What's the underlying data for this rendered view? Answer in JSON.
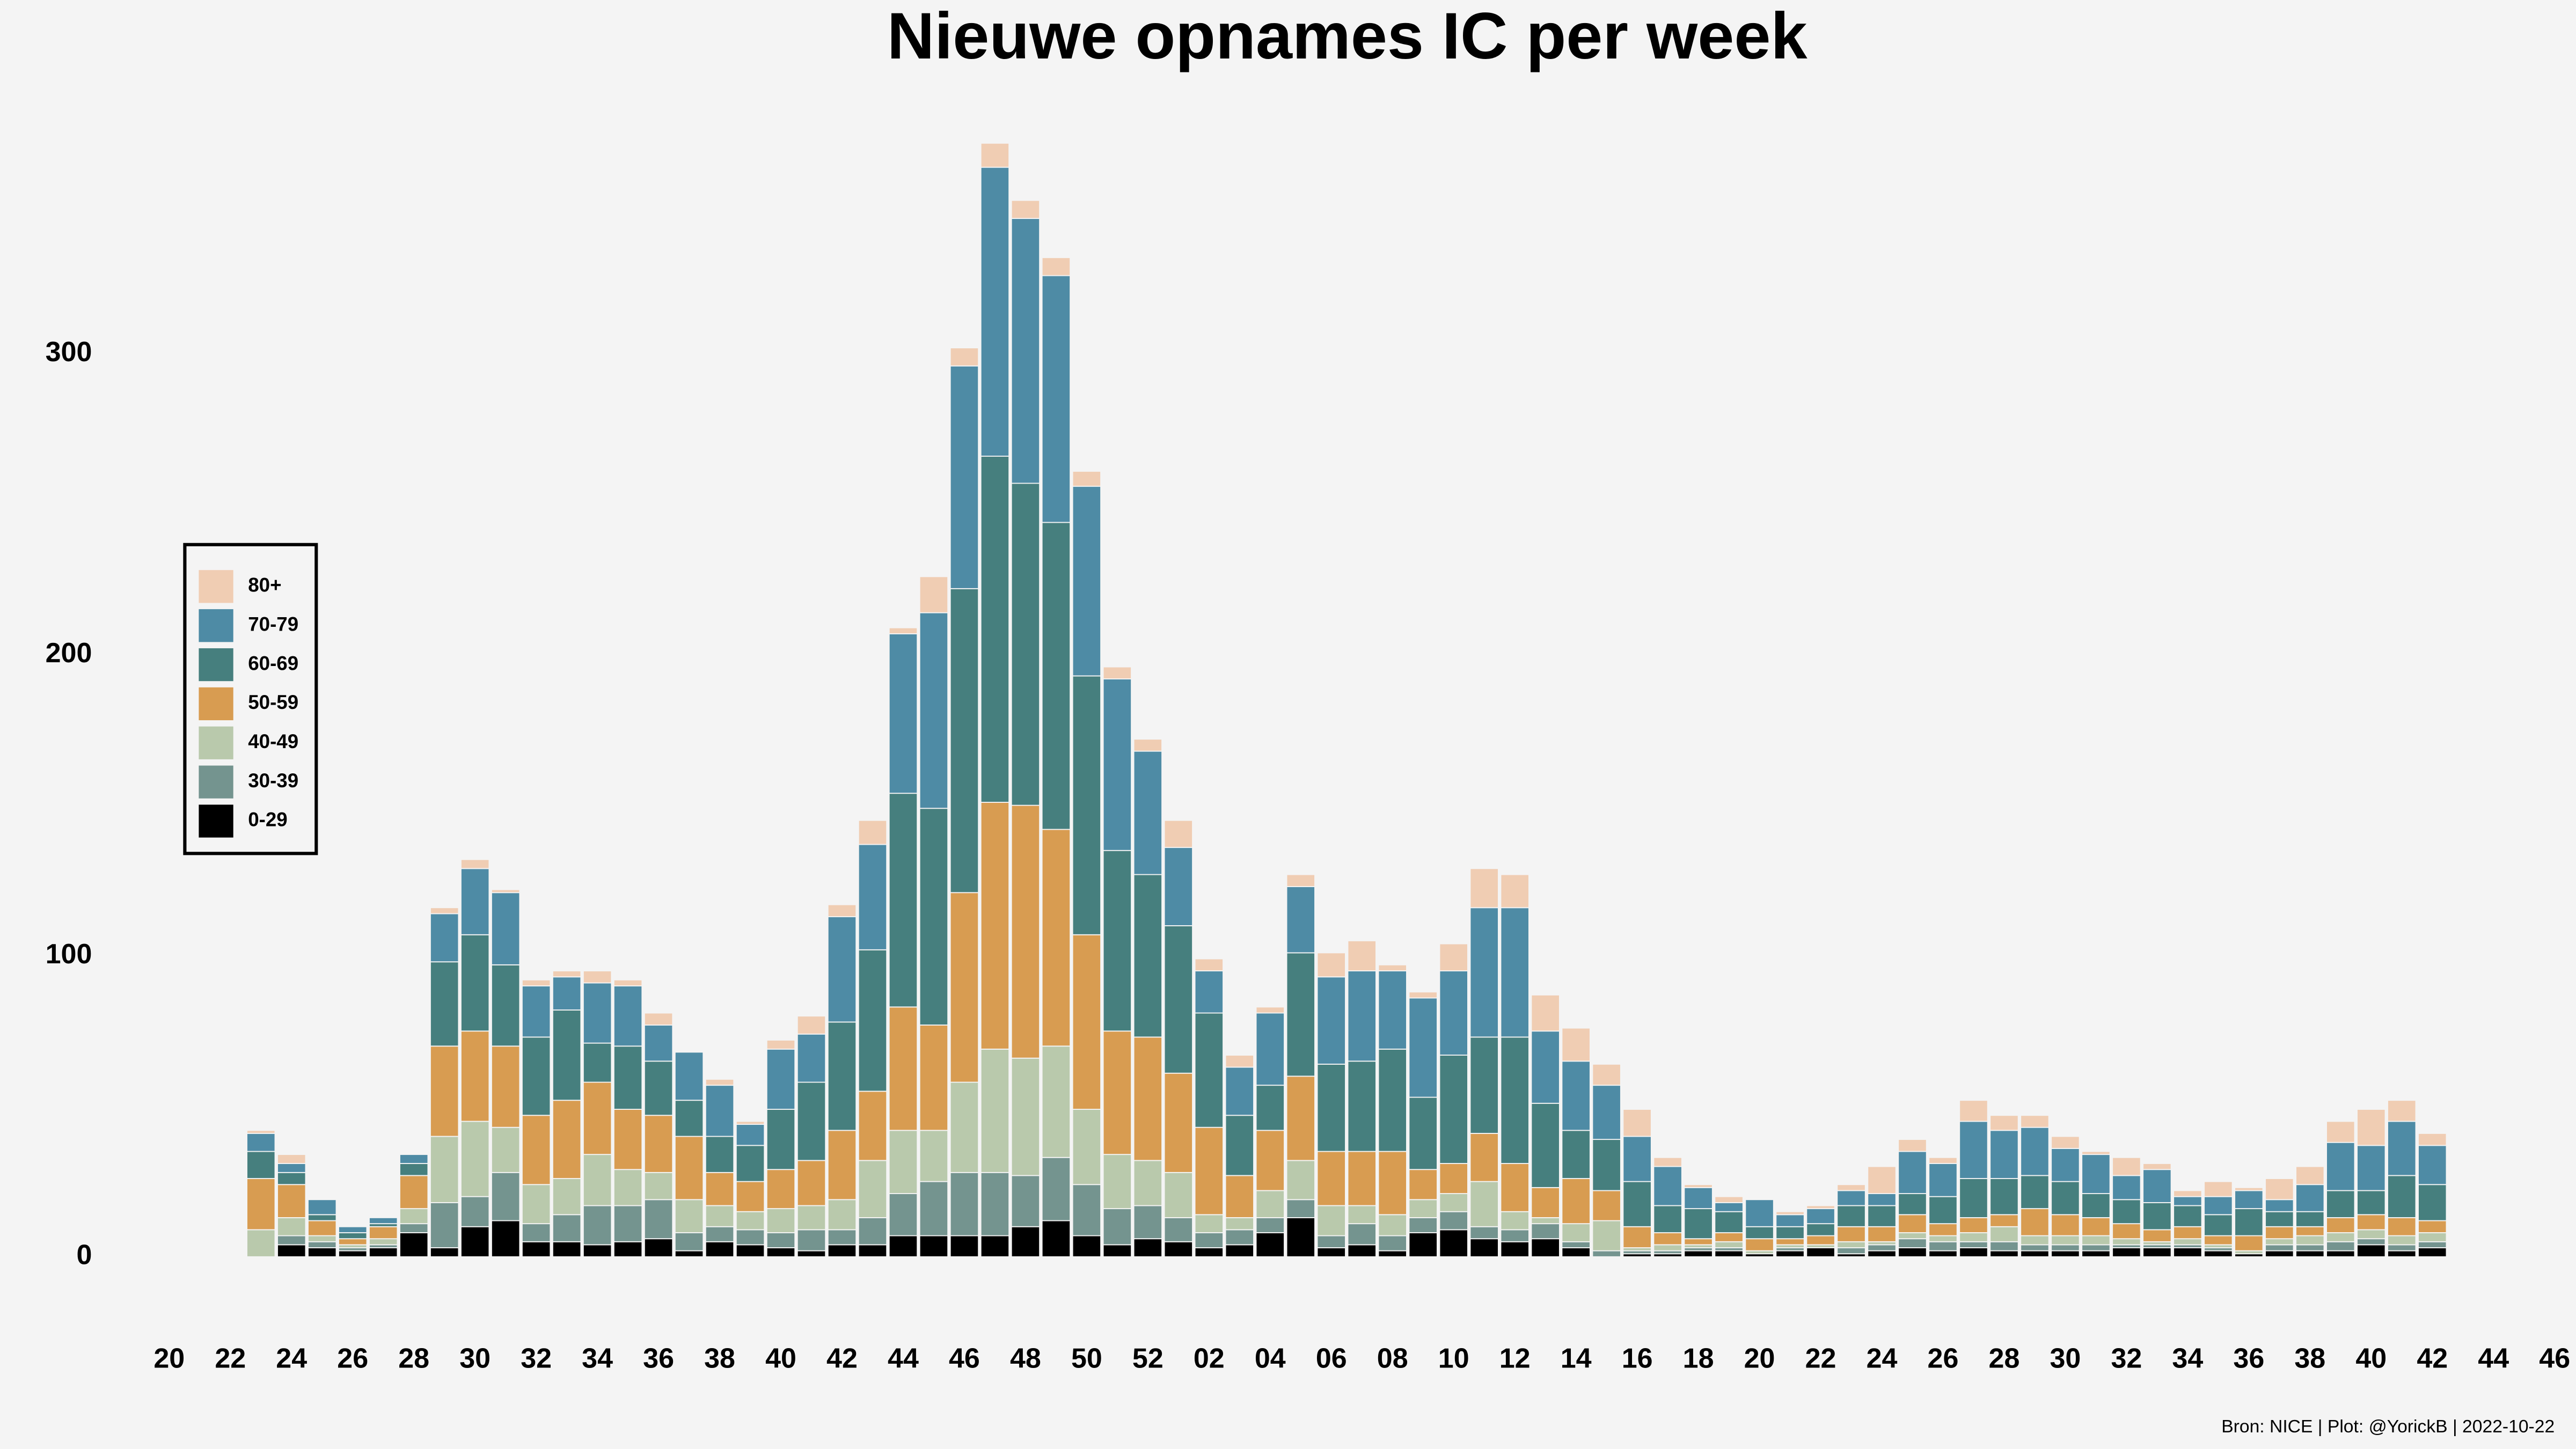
{
  "chart_data": {
    "type": "stacked_bar",
    "title": "Nieuwe opnames IC per week",
    "caption": "Bron: NICE | Plot: @YorickB |  2022-10-22",
    "categories": [
      "20",
      null,
      "22",
      null,
      "24",
      null,
      "26",
      null,
      "28",
      null,
      "30",
      null,
      "32",
      null,
      "34",
      null,
      "36",
      null,
      "38",
      null,
      "40",
      null,
      "42",
      null,
      "44",
      null,
      "46",
      null,
      "48",
      null,
      "50",
      null,
      "52",
      null,
      "02",
      null,
      "04",
      null,
      "06",
      null,
      "08",
      null,
      "10",
      null,
      "12",
      null,
      "14",
      null,
      "16",
      null,
      "18",
      null,
      "20",
      null,
      "22",
      null,
      "24",
      null,
      "26",
      null,
      "28",
      null,
      "30",
      null,
      "32",
      null,
      "34",
      null,
      "36",
      null,
      "38",
      null,
      "40",
      null,
      "42",
      null,
      "44",
      null,
      "46"
    ],
    "series": [
      {
        "name": "0-29",
        "color": "#000000",
        "values": [
          null,
          null,
          null,
          0,
          4,
          3,
          2,
          3,
          8,
          3,
          10,
          12,
          5,
          5,
          4,
          5,
          6,
          2,
          5,
          4,
          3,
          2,
          4,
          4,
          7,
          7,
          7,
          7,
          10,
          12,
          7,
          4,
          6,
          5,
          3,
          4,
          8,
          13,
          3,
          4,
          2,
          8,
          9,
          6,
          5,
          6,
          3,
          0,
          1,
          1,
          2,
          2,
          1,
          2,
          3,
          1,
          2,
          3,
          2,
          3,
          2,
          2,
          2,
          2,
          3,
          3,
          3,
          2,
          1,
          2,
          2,
          2,
          4,
          2,
          3,
          null,
          null,
          null,
          null
        ]
      },
      {
        "name": "30-39",
        "color": "#74948f",
        "values": [
          null,
          null,
          null,
          0,
          3,
          2,
          1,
          1,
          3,
          15,
          10,
          16,
          6,
          9,
          13,
          12,
          13,
          6,
          5,
          5,
          5,
          7,
          5,
          9,
          14,
          18,
          21,
          21,
          17,
          21,
          17,
          12,
          11,
          8,
          5,
          5,
          5,
          6,
          4,
          7,
          5,
          5,
          6,
          4,
          4,
          5,
          2,
          2,
          1,
          1,
          1,
          1,
          0,
          1,
          0,
          2,
          2,
          3,
          3,
          2,
          3,
          2,
          2,
          2,
          1,
          1,
          1,
          1,
          0,
          2,
          2,
          3,
          2,
          2,
          2,
          null,
          null,
          null,
          null
        ]
      },
      {
        "name": "40-49",
        "color": "#b9c9ac",
        "values": [
          null,
          null,
          null,
          9,
          6,
          2,
          1,
          2,
          5,
          22,
          25,
          15,
          13,
          12,
          17,
          12,
          9,
          11,
          7,
          6,
          8,
          8,
          10,
          19,
          21,
          17,
          30,
          41,
          39,
          37,
          25,
          18,
          15,
          15,
          6,
          4,
          9,
          13,
          10,
          6,
          7,
          6,
          6,
          15,
          6,
          2,
          6,
          10,
          1,
          2,
          1,
          2,
          1,
          1,
          1,
          2,
          1,
          2,
          2,
          3,
          5,
          3,
          3,
          3,
          2,
          1,
          2,
          1,
          1,
          2,
          3,
          3,
          3,
          3,
          3,
          null,
          null,
          null,
          null
        ]
      },
      {
        "name": "50-59",
        "color": "#d89c51",
        "values": [
          null,
          null,
          null,
          17,
          11,
          5,
          2,
          4,
          11,
          30,
          30,
          27,
          23,
          26,
          24,
          20,
          19,
          21,
          11,
          10,
          13,
          15,
          23,
          23,
          41,
          35,
          63,
          82,
          84,
          72,
          58,
          41,
          41,
          33,
          29,
          14,
          20,
          28,
          18,
          18,
          21,
          10,
          10,
          16,
          16,
          10,
          15,
          10,
          7,
          4,
          2,
          3,
          4,
          2,
          3,
          5,
          5,
          6,
          4,
          5,
          4,
          9,
          7,
          6,
          5,
          4,
          4,
          3,
          5,
          4,
          3,
          5,
          5,
          6,
          4,
          null,
          null,
          null,
          null
        ]
      },
      {
        "name": "60-69",
        "color": "#467f7e",
        "values": [
          null,
          null,
          null,
          9,
          4,
          2,
          2,
          1,
          4,
          28,
          32,
          27,
          26,
          30,
          13,
          21,
          18,
          12,
          12,
          12,
          20,
          26,
          36,
          47,
          71,
          72,
          101,
          115,
          107,
          102,
          86,
          60,
          54,
          49,
          38,
          20,
          15,
          41,
          29,
          30,
          34,
          24,
          36,
          32,
          42,
          28,
          16,
          17,
          15,
          9,
          10,
          7,
          4,
          4,
          4,
          7,
          7,
          7,
          9,
          13,
          12,
          11,
          11,
          8,
          8,
          9,
          7,
          7,
          9,
          5,
          5,
          9,
          8,
          14,
          12,
          null,
          null,
          null,
          null
        ]
      },
      {
        "name": "70-79",
        "color": "#4e8ba5",
        "values": [
          null,
          null,
          null,
          6,
          3,
          5,
          2,
          2,
          3,
          16,
          22,
          24,
          17,
          11,
          20,
          20,
          12,
          16,
          17,
          7,
          20,
          16,
          35,
          35,
          53,
          65,
          74,
          96,
          88,
          82,
          63,
          57,
          41,
          26,
          14,
          16,
          24,
          22,
          29,
          30,
          26,
          33,
          28,
          43,
          43,
          24,
          23,
          18,
          15,
          13,
          7,
          3,
          9,
          4,
          5,
          5,
          4,
          14,
          11,
          19,
          16,
          16,
          11,
          13,
          8,
          11,
          3,
          6,
          6,
          4,
          9,
          16,
          15,
          18,
          13,
          null,
          null,
          null,
          null
        ]
      },
      {
        "name": "80+",
        "color": "#f0cdb3",
        "values": [
          null,
          null,
          null,
          1,
          3,
          0,
          0,
          0,
          0,
          2,
          3,
          1,
          2,
          2,
          4,
          2,
          4,
          0,
          2,
          1,
          3,
          6,
          4,
          8,
          2,
          12,
          6,
          8,
          6,
          6,
          5,
          4,
          4,
          9,
          4,
          4,
          2,
          4,
          8,
          10,
          2,
          2,
          9,
          13,
          11,
          12,
          11,
          7,
          9,
          3,
          1,
          2,
          0,
          1,
          1,
          2,
          9,
          4,
          2,
          7,
          5,
          4,
          4,
          1,
          6,
          2,
          2,
          5,
          1,
          7,
          6,
          7,
          12,
          7,
          4,
          null,
          null,
          null,
          null
        ]
      }
    ],
    "ylim": [
      0,
      375
    ],
    "yticks": [
      0,
      100,
      200,
      300
    ],
    "grid": false,
    "legend": "left"
  }
}
